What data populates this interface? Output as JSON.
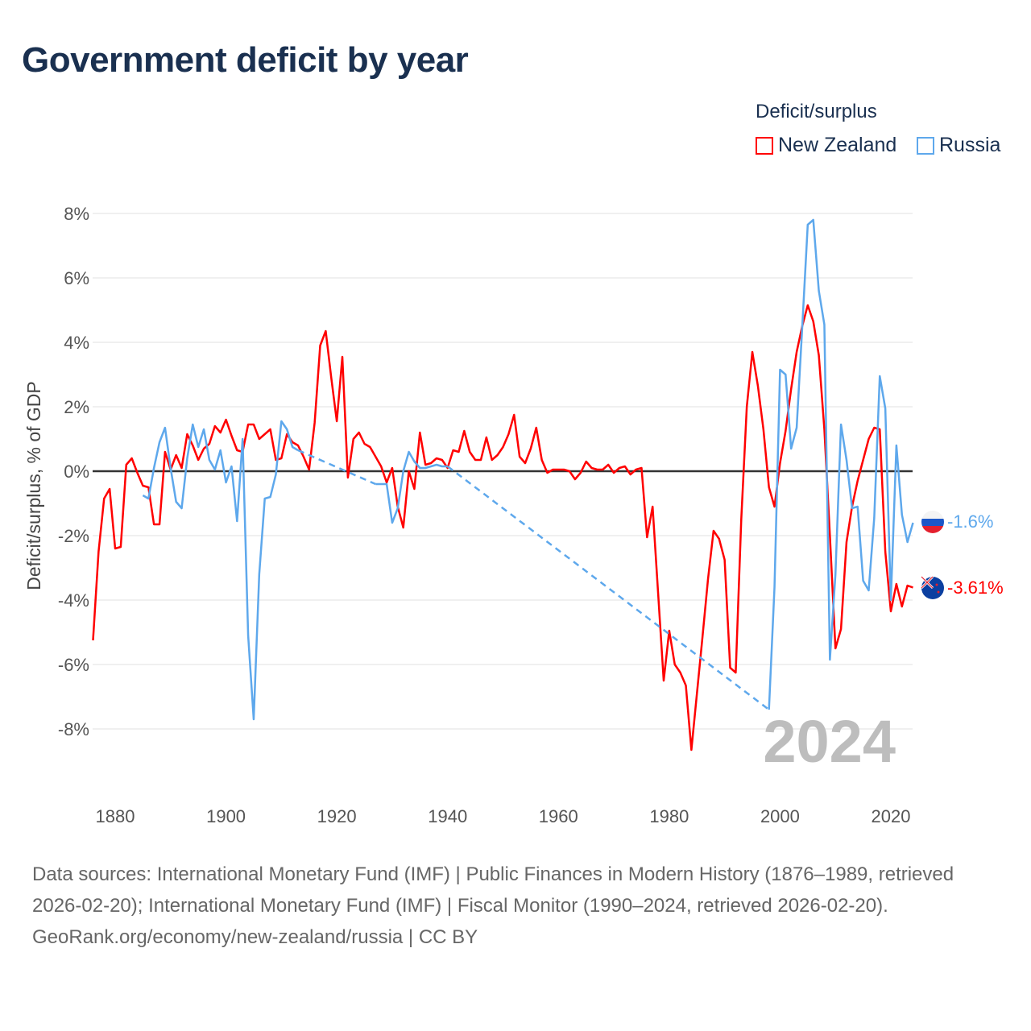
{
  "title": "Government deficit by year",
  "legend": {
    "title": "Deficit/surplus",
    "items": [
      {
        "label": "New Zealand",
        "color": "#ff0000"
      },
      {
        "label": "Russia",
        "color": "#5ea8ec"
      }
    ]
  },
  "end_labels": {
    "russia": "-1.6%",
    "new_zealand": "-3.61%"
  },
  "flags": {
    "russia": "russia-flag-icon",
    "new_zealand": "new-zealand-flag-icon"
  },
  "year_watermark": "2024",
  "footer": {
    "sources": "Data sources: International Monetary Fund (IMF) | Public Finances in Modern History (1876–1989, retrieved 2026-02-20); International Monetary Fund (IMF) | Fiscal Monitor (1990–2024, retrieved 2026-02-20).",
    "attribution": "GeoRank.org/economy/new-zealand/russia | CC BY"
  },
  "chart_data": {
    "type": "line",
    "title": "Government deficit by year",
    "xlabel": "",
    "ylabel": "Deficit/surplus, % of GDP",
    "xlim": [
      1876,
      2024
    ],
    "ylim": [
      -10,
      8
    ],
    "x_ticks": [
      1880,
      1900,
      1920,
      1940,
      1960,
      1980,
      2000,
      2020
    ],
    "x_tick_labels": [
      "1880",
      "1900",
      "1920",
      "1940",
      "1960",
      "1980",
      "2000",
      "2020"
    ],
    "y_ticks": [
      8,
      6,
      4,
      2,
      0,
      -2,
      -4,
      -6,
      -8
    ],
    "y_tick_labels": [
      "8%",
      "6%",
      "4%",
      "2%",
      "0%",
      "-2%",
      "-4%",
      "-6%",
      "-8%"
    ],
    "grid": true,
    "legend_position": "top-right",
    "series": [
      {
        "name": "New Zealand",
        "color": "#ff0000",
        "start_year": 1876,
        "values": [
          -5.25,
          -2.5,
          -0.85,
          -0.55,
          -2.4,
          -2.35,
          0.2,
          0.4,
          -0.05,
          -0.45,
          -0.5,
          -1.65,
          -1.65,
          0.6,
          0.05,
          0.5,
          0.1,
          1.15,
          0.8,
          0.35,
          0.7,
          0.85,
          1.4,
          1.2,
          1.6,
          1.1,
          0.65,
          0.6,
          1.45,
          1.45,
          1.0,
          1.15,
          1.3,
          0.35,
          0.4,
          1.15,
          0.9,
          0.8,
          0.45,
          0.05,
          1.5,
          3.9,
          4.35,
          2.9,
          1.55,
          3.55,
          -0.2,
          1.0,
          1.2,
          0.85,
          0.75,
          0.45,
          0.15,
          -0.35,
          0.1,
          -1.1,
          -1.75,
          0.0,
          -0.55,
          1.2,
          0.2,
          0.25,
          0.4,
          0.35,
          0.1,
          0.65,
          0.6,
          1.25,
          0.6,
          0.35,
          0.35,
          1.05,
          0.35,
          0.5,
          0.75,
          1.15,
          1.75,
          0.45,
          0.25,
          0.7,
          1.35,
          0.35,
          -0.05,
          0.05,
          0.05,
          0.05,
          0.0,
          -0.25,
          -0.05,
          0.3,
          0.1,
          0.05,
          0.05,
          0.2,
          -0.05,
          0.1,
          0.15,
          -0.1,
          0.05,
          0.1,
          -2.05,
          -1.1,
          -3.8,
          -6.5,
          -4.95,
          -6.0,
          -6.25,
          -6.65,
          -8.65,
          -6.9,
          -5.15,
          -3.35,
          -1.85,
          -2.1,
          -2.75,
          -6.1,
          -6.25,
          -1.5,
          2.0,
          3.7,
          2.65,
          1.3,
          -0.5,
          -1.1,
          0.25,
          1.25,
          2.55,
          3.7,
          4.5,
          5.15,
          4.65,
          3.6,
          1.3,
          -2.0,
          -5.5,
          -4.9,
          -2.2,
          -1.1,
          -0.3,
          0.35,
          1.0,
          1.35,
          1.3,
          -2.5,
          -4.35,
          -3.5,
          -4.2,
          -3.55,
          -3.61
        ]
      },
      {
        "name": "Russia",
        "color": "#5ea8ec",
        "points": [
          [
            1885,
            -0.75
          ],
          [
            1886,
            -0.85
          ],
          [
            1887,
            0.1
          ],
          [
            1888,
            0.9
          ],
          [
            1889,
            1.35
          ],
          [
            1890,
            0.1
          ],
          [
            1891,
            -0.95
          ],
          [
            1892,
            -1.15
          ],
          [
            1893,
            0.4
          ],
          [
            1894,
            1.45
          ],
          [
            1895,
            0.75
          ],
          [
            1896,
            1.3
          ],
          [
            1897,
            0.35
          ],
          [
            1898,
            0.05
          ],
          [
            1899,
            0.65
          ],
          [
            1900,
            -0.35
          ],
          [
            1901,
            0.15
          ],
          [
            1902,
            -1.55
          ],
          [
            1903,
            1.0
          ],
          [
            1904,
            -5.1
          ],
          [
            1905,
            -7.7
          ],
          [
            1906,
            -3.2
          ],
          [
            1907,
            -0.85
          ],
          [
            1908,
            -0.8
          ],
          [
            1909,
            -0.1
          ],
          [
            1910,
            1.55
          ],
          [
            1911,
            1.3
          ],
          [
            1912,
            0.75
          ],
          [
            1913,
            0.65
          ],
          [
            1927,
            -0.4
          ],
          [
            1928,
            -0.4
          ],
          [
            1929,
            -0.4
          ],
          [
            1930,
            -1.6
          ],
          [
            1931,
            -1.15
          ],
          [
            1932,
            0.0
          ],
          [
            1933,
            0.6
          ],
          [
            1934,
            0.3
          ],
          [
            1935,
            0.1
          ],
          [
            1936,
            0.1
          ],
          [
            1937,
            0.15
          ],
          [
            1938,
            0.2
          ],
          [
            1939,
            0.15
          ],
          [
            1940,
            0.15
          ],
          [
            1998,
            -7.4
          ],
          [
            1999,
            -3.6
          ],
          [
            2000,
            3.15
          ],
          [
            2001,
            3.0
          ],
          [
            2002,
            0.7
          ],
          [
            2003,
            1.35
          ],
          [
            2004,
            4.45
          ],
          [
            2005,
            7.65
          ],
          [
            2006,
            7.8
          ],
          [
            2007,
            5.6
          ],
          [
            2008,
            4.55
          ],
          [
            2009,
            -5.85
          ],
          [
            2010,
            -3.2
          ],
          [
            2011,
            1.45
          ],
          [
            2012,
            0.35
          ],
          [
            2013,
            -1.15
          ],
          [
            2014,
            -1.1
          ],
          [
            2015,
            -3.4
          ],
          [
            2016,
            -3.7
          ],
          [
            2017,
            -1.45
          ],
          [
            2018,
            2.95
          ],
          [
            2019,
            1.95
          ],
          [
            2020,
            -4.0
          ],
          [
            2021,
            0.8
          ],
          [
            2022,
            -1.35
          ],
          [
            2023,
            -2.2
          ],
          [
            2024,
            -1.6
          ]
        ]
      }
    ]
  }
}
